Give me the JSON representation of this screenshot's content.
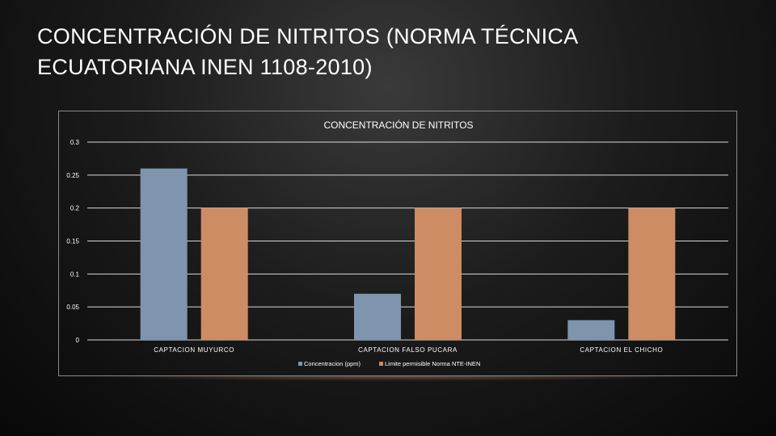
{
  "slide": {
    "title": "CONCENTRACIÓN DE NITRITOS (NORMA TÉCNICA ECUATORIANA INEN 1108-2010)"
  },
  "colors": {
    "series_1": "#7f94ad",
    "series_2": "#cd8c63",
    "grid": "#d9d9d9",
    "text": "#ffffff"
  },
  "chart_data": {
    "type": "bar",
    "title": "CONCENTRACIÓN DE NITRITOS",
    "categories": [
      "CAPTACION MUYURCO",
      "CAPTACION FALSO PUCARA",
      "CAPTACION EL CHICHO"
    ],
    "series": [
      {
        "name": "Concentracion (ppm)",
        "values": [
          0.26,
          0.07,
          0.03
        ]
      },
      {
        "name": "Limite permisible Norma NTE-INEN",
        "values": [
          0.2,
          0.2,
          0.2
        ]
      }
    ],
    "yticks": [
      "0",
      "0.05",
      "0.1",
      "0.15",
      "0.2",
      "0.25",
      "0.3"
    ],
    "ylim": [
      0,
      0.3
    ],
    "grid": true,
    "legend": "bottom"
  }
}
